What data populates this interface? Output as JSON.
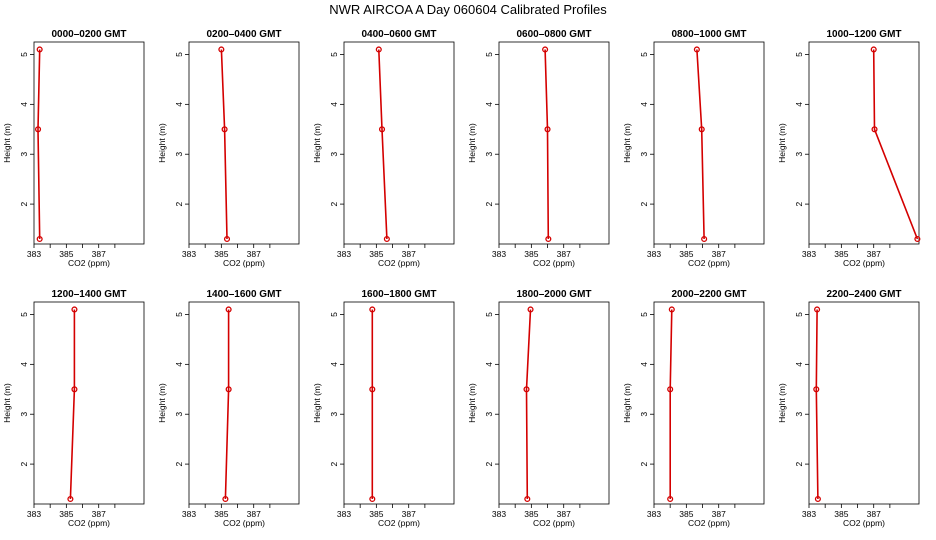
{
  "title": "NWR AIRCOA A  Day 060604  Calibrated Profiles",
  "chart_data": {
    "type": "line",
    "xlabel": "CO2 (ppm)",
    "ylabel": "Height (m)",
    "xlim": [
      383,
      389.8
    ],
    "ylim": [
      1.2,
      5.25
    ],
    "xticks": [
      383,
      385,
      387
    ],
    "yticks": [
      2,
      3,
      4,
      5
    ],
    "series_color": "#d40000",
    "panels": [
      {
        "title": "0000–0200 GMT",
        "points": [
          {
            "x": 383.35,
            "y": 1.3
          },
          {
            "x": 383.25,
            "y": 3.5
          },
          {
            "x": 383.35,
            "y": 5.1
          }
        ]
      },
      {
        "title": "0200–0400 GMT",
        "points": [
          {
            "x": 385.35,
            "y": 1.3
          },
          {
            "x": 385.2,
            "y": 3.5
          },
          {
            "x": 385.0,
            "y": 5.1
          }
        ]
      },
      {
        "title": "0400–0600 GMT",
        "points": [
          {
            "x": 385.65,
            "y": 1.3
          },
          {
            "x": 385.35,
            "y": 3.5
          },
          {
            "x": 385.15,
            "y": 5.1
          }
        ]
      },
      {
        "title": "0600–0800 GMT",
        "points": [
          {
            "x": 386.05,
            "y": 1.3
          },
          {
            "x": 386.0,
            "y": 3.5
          },
          {
            "x": 385.85,
            "y": 5.1
          }
        ]
      },
      {
        "title": "0800–1000 GMT",
        "points": [
          {
            "x": 386.1,
            "y": 1.3
          },
          {
            "x": 385.95,
            "y": 3.5
          },
          {
            "x": 385.65,
            "y": 5.1
          }
        ]
      },
      {
        "title": "1000–1200 GMT",
        "points": [
          {
            "x": 389.7,
            "y": 1.3
          },
          {
            "x": 387.05,
            "y": 3.5
          },
          {
            "x": 387.0,
            "y": 5.1
          }
        ]
      },
      {
        "title": "1200–1400 GMT",
        "points": [
          {
            "x": 385.25,
            "y": 1.3
          },
          {
            "x": 385.5,
            "y": 3.5
          },
          {
            "x": 385.5,
            "y": 5.1
          }
        ]
      },
      {
        "title": "1400–1600 GMT",
        "points": [
          {
            "x": 385.25,
            "y": 1.3
          },
          {
            "x": 385.45,
            "y": 3.5
          },
          {
            "x": 385.45,
            "y": 5.1
          }
        ]
      },
      {
        "title": "1600–1800 GMT",
        "points": [
          {
            "x": 384.75,
            "y": 1.3
          },
          {
            "x": 384.75,
            "y": 3.5
          },
          {
            "x": 384.75,
            "y": 5.1
          }
        ]
      },
      {
        "title": "1800–2000 GMT",
        "points": [
          {
            "x": 384.75,
            "y": 1.3
          },
          {
            "x": 384.7,
            "y": 3.5
          },
          {
            "x": 384.95,
            "y": 5.1
          }
        ]
      },
      {
        "title": "2000–2200 GMT",
        "points": [
          {
            "x": 384.0,
            "y": 1.3
          },
          {
            "x": 384.0,
            "y": 3.5
          },
          {
            "x": 384.1,
            "y": 5.1
          }
        ]
      },
      {
        "title": "2200–2400 GMT",
        "points": [
          {
            "x": 383.55,
            "y": 1.3
          },
          {
            "x": 383.45,
            "y": 3.5
          },
          {
            "x": 383.5,
            "y": 5.1
          }
        ]
      }
    ]
  }
}
